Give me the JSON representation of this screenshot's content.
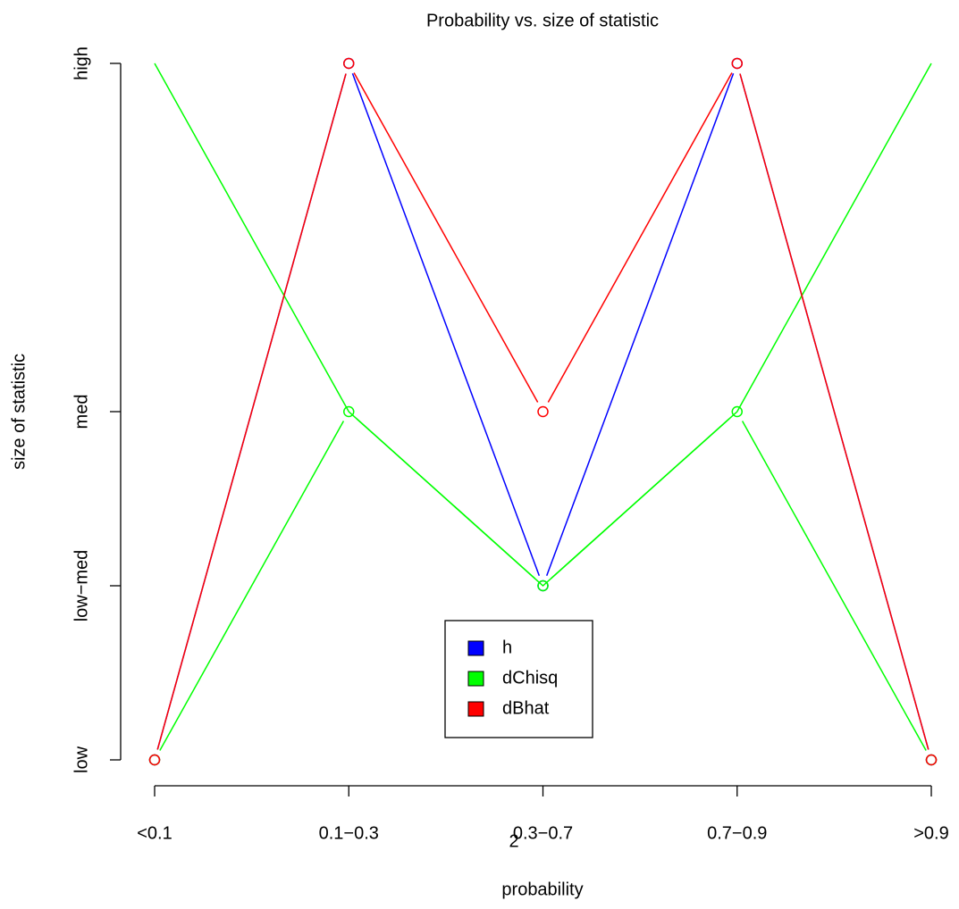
{
  "chart_data": {
    "type": "line",
    "title": "Probability vs. size of statistic",
    "x_label": "probability",
    "y_label": "size of statistic",
    "annotation": "2",
    "categories": [
      "<0.1",
      "0.1−0.3",
      "0.3−0.7",
      "0.7−0.9",
      ">0.9"
    ],
    "xlim": [
      0.84,
      5.16
    ],
    "ylim": [
      -0.16,
      4.16
    ],
    "yticks": [
      {
        "value": 0,
        "label": "low"
      },
      {
        "value": 1,
        "label": "low−med"
      },
      {
        "value": 2,
        "label": "med"
      },
      {
        "value": 4,
        "label": "high"
      }
    ],
    "legend": "bottom",
    "series": [
      {
        "name": "h",
        "color": "#0000ff",
        "values": [
          0,
          4,
          1,
          4,
          0
        ],
        "markers": true
      },
      {
        "color": "#00ff00",
        "values": [
          4,
          2,
          1,
          2,
          4
        ],
        "markers": false
      },
      {
        "name": "dChisq",
        "color": "#00ff00",
        "values": [
          0,
          2,
          1,
          2,
          0
        ],
        "markers": true
      },
      {
        "name": "dBhat",
        "color": "#ff0000",
        "values": [
          0,
          4,
          2,
          4,
          0
        ],
        "markers": true
      }
    ]
  }
}
